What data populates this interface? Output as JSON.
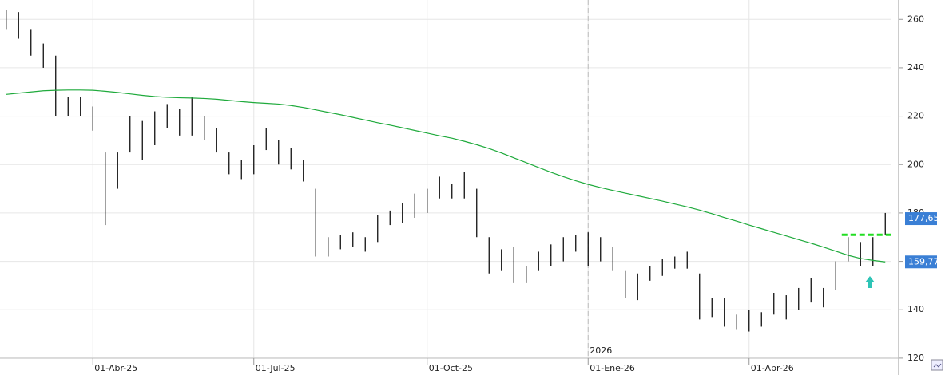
{
  "chart_data": {
    "type": "ohlc",
    "categories": [
      null,
      null,
      null,
      null,
      null,
      null,
      null,
      "01-Abr-25",
      null,
      null,
      null,
      null,
      null,
      null,
      null,
      null,
      null,
      null,
      null,
      null,
      "01-Jul-25",
      null,
      null,
      null,
      null,
      null,
      null,
      null,
      null,
      null,
      null,
      null,
      null,
      null,
      "01-Oct-25",
      null,
      null,
      null,
      null,
      null,
      null,
      null,
      null,
      null,
      null,
      null,
      null,
      "01-Ene-26",
      null,
      null,
      null,
      null,
      null,
      null,
      null,
      null,
      null,
      null,
      null,
      null,
      "01-Abr-26",
      null,
      null,
      null,
      null,
      null,
      null,
      null,
      null,
      null,
      null,
      null
    ],
    "year_label": {
      "index": 47,
      "label": "2026"
    },
    "high": [
      264,
      263,
      256,
      250,
      245,
      228,
      228,
      224,
      205,
      205,
      220,
      218,
      222,
      225,
      223,
      228,
      220,
      215,
      205,
      202,
      208,
      215,
      210,
      207,
      202,
      190,
      170,
      171,
      172,
      170,
      179,
      181,
      184,
      188,
      190,
      195,
      192,
      197,
      190,
      170,
      165,
      166,
      158,
      164,
      167,
      170,
      171,
      172,
      170,
      166,
      156,
      155,
      158,
      161,
      162,
      164,
      155,
      145,
      145,
      138,
      140,
      139,
      147,
      146,
      149,
      153,
      149,
      160,
      170,
      168,
      170,
      180
    ],
    "low": [
      256,
      252,
      245,
      240,
      220,
      220,
      220,
      214,
      175,
      190,
      205,
      202,
      208,
      215,
      212,
      212,
      210,
      205,
      196,
      194,
      196,
      206,
      200,
      198,
      193,
      162,
      162,
      165,
      166,
      164,
      168,
      175,
      176,
      178,
      180,
      186,
      186,
      186,
      170,
      155,
      156,
      151,
      151,
      156,
      158,
      160,
      164,
      158,
      160,
      156,
      145,
      144,
      152,
      154,
      157,
      157,
      136,
      137,
      133,
      132,
      131,
      133,
      138,
      136,
      140,
      143,
      141,
      148,
      160,
      158,
      158,
      171
    ],
    "color": "#111111",
    "series": [
      {
        "color": "#1faa3c",
        "values": [
          229,
          229.5,
          230,
          230.5,
          230.7,
          230.8,
          230.8,
          230.7,
          230.3,
          229.8,
          229.2,
          228.6,
          228.1,
          227.8,
          227.6,
          227.5,
          227.3,
          227,
          226.5,
          226,
          225.6,
          225.3,
          225,
          224.4,
          223.6,
          222.6,
          221.6,
          220.6,
          219.5,
          218.4,
          217.3,
          216.3,
          215.2,
          214.1,
          213,
          211.9,
          210.9,
          209.6,
          208.2,
          206.6,
          204.8,
          202.8,
          200.8,
          198.8,
          196.8,
          195,
          193.3,
          191.8,
          190.5,
          189.3,
          188.2,
          187.1,
          186,
          184.9,
          183.7,
          182.5,
          181.2,
          179.7,
          178.1,
          176.6,
          175,
          173.5,
          172,
          170.5,
          169,
          167.5,
          165.9,
          164.2,
          162.5,
          161.2,
          160.4,
          159.77
        ]
      }
    ],
    "price_labels": [
      {
        "value": 177.65,
        "label": "177,65"
      },
      {
        "value": 159.77,
        "label": "159,77"
      }
    ],
    "level_line": {
      "value": 171,
      "from_index": 68,
      "color": "#22dd22"
    },
    "ylim": [
      117,
      268
    ],
    "yticks": [
      120,
      140,
      160,
      180,
      200,
      220,
      240,
      260
    ],
    "grid": true
  }
}
